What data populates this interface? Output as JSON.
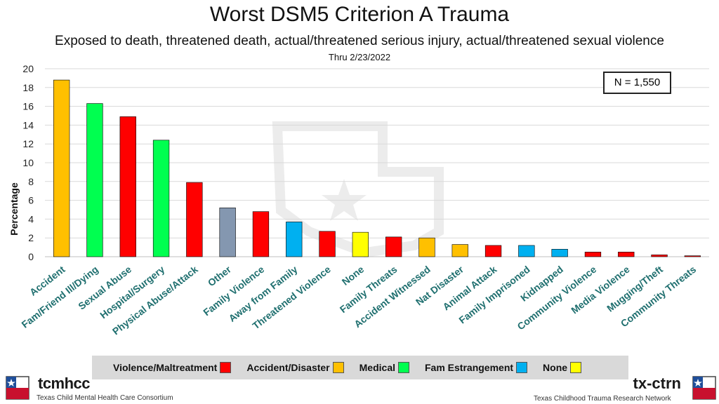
{
  "header": {
    "title": "Worst DSM5 Criterion A Trauma",
    "subtitle": "Exposed to death, threatened death, actual/threatened serious injury, actual/threatened sexual violence",
    "date": "Thru 2/23/2022"
  },
  "annotation": {
    "n_label": "N = 1,550"
  },
  "colors": {
    "violence": "#ff0000",
    "accident": "#ffc000",
    "medical": "#00ff50",
    "fam_estrangement": "#00b0f0",
    "none": "#ffff00",
    "other": "#8497b0"
  },
  "legend": {
    "items": [
      {
        "label": "Violence/Maltreatment",
        "color": "#ff0000"
      },
      {
        "label": "Accident/Disaster",
        "color": "#ffc000"
      },
      {
        "label": "Medical",
        "color": "#00ff50"
      },
      {
        "label": "Fam Estrangement",
        "color": "#00b0f0"
      },
      {
        "label": "None",
        "color": "#ffff00"
      }
    ]
  },
  "chart_data": {
    "type": "bar",
    "title": "Worst DSM5 Criterion A Trauma",
    "xlabel": "",
    "ylabel": "Percentage",
    "ylim": [
      0,
      20
    ],
    "yticks": [
      0,
      2,
      4,
      6,
      8,
      10,
      12,
      14,
      16,
      18,
      20
    ],
    "grid": true,
    "legend_position": "bottom",
    "categories": [
      "Accident",
      "Fam/Friend Ill/Dying",
      "Sexual Abuse",
      "Hospital/Surgery",
      "Physical Abuse/Attack",
      "Other",
      "Family Violence",
      "Away from Family",
      "Threatened Violence",
      "None",
      "Family Threats",
      "Accident Witnessed",
      "Nat Disaster",
      "Animal Attack",
      "Family Imprisoned",
      "Kidnapped",
      "Community Violence",
      "Media Violence",
      "Mugging/Theft",
      "Community Threats"
    ],
    "values": [
      18.8,
      16.3,
      14.9,
      12.4,
      7.9,
      5.2,
      4.8,
      3.7,
      2.7,
      2.6,
      2.1,
      2.0,
      1.3,
      1.2,
      1.2,
      0.8,
      0.5,
      0.5,
      0.2,
      0.1
    ],
    "colors": [
      "#ffc000",
      "#00ff50",
      "#ff0000",
      "#00ff50",
      "#ff0000",
      "#8497b0",
      "#ff0000",
      "#00b0f0",
      "#ff0000",
      "#ffff00",
      "#ff0000",
      "#ffc000",
      "#ffc000",
      "#ff0000",
      "#00b0f0",
      "#00b0f0",
      "#ff0000",
      "#ff0000",
      "#ff0000",
      "#ff0000"
    ]
  },
  "footer": {
    "left_logo_name": "tcmhcc",
    "left_logo_sub": "Texas Child Mental Health Care Consortium",
    "right_logo_name": "tx-ctrn",
    "right_logo_sub": "Texas Childhood Trauma Research Network"
  }
}
